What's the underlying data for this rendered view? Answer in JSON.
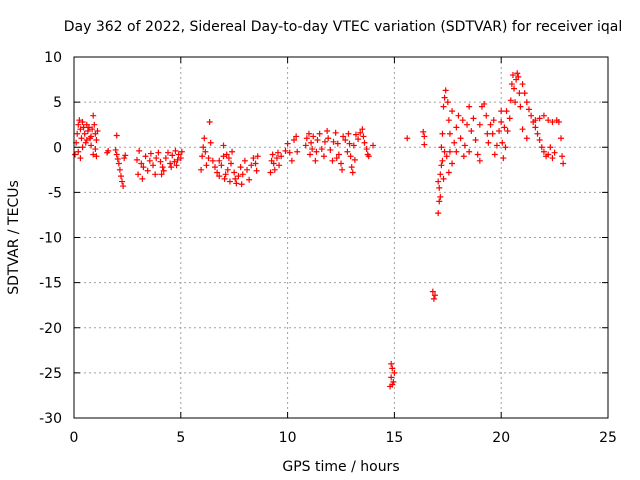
{
  "chart_data": {
    "type": "scatter",
    "title": "Day 362 of 2022, Sidereal Day-to-day VTEC variation (SDTVAR) for receiver iqal",
    "xlabel": "GPS time / hours",
    "ylabel": "SDTVAR / TECUs",
    "xlim": [
      0,
      25
    ],
    "ylim": [
      -30,
      10
    ],
    "xticks": [
      0,
      5,
      10,
      15,
      20,
      25
    ],
    "yticks": [
      -30,
      -25,
      -20,
      -15,
      -10,
      -5,
      0,
      5,
      10
    ],
    "grid": true,
    "marker": "+",
    "series": [
      {
        "name": "SDTVAR",
        "color": "#ff0000",
        "points": [
          [
            0.05,
            -0.8
          ],
          [
            0.1,
            0.5
          ],
          [
            0.15,
            1.5
          ],
          [
            0.2,
            2.5
          ],
          [
            0.25,
            3.0
          ],
          [
            0.3,
            2.0
          ],
          [
            0.35,
            1.0
          ],
          [
            0.4,
            2.8
          ],
          [
            0.45,
            2.2
          ],
          [
            0.5,
            1.5
          ],
          [
            0.55,
            0.5
          ],
          [
            0.6,
            2.5
          ],
          [
            0.65,
            1.8
          ],
          [
            0.7,
            2.2
          ],
          [
            0.75,
            1.0
          ],
          [
            0.8,
            0.2
          ],
          [
            0.85,
            2.0
          ],
          [
            0.9,
            3.5
          ],
          [
            0.95,
            2.5
          ],
          [
            1.0,
            1.5
          ],
          [
            1.05,
            0.8
          ],
          [
            1.1,
            1.8
          ],
          [
            0.2,
            -0.5
          ],
          [
            0.4,
            0.0
          ],
          [
            0.6,
            0.8
          ],
          [
            0.8,
            1.2
          ],
          [
            1.0,
            -0.2
          ],
          [
            0.9,
            -0.8
          ],
          [
            1.05,
            -1.0
          ],
          [
            0.3,
            -1.2
          ],
          [
            1.55,
            -0.6
          ],
          [
            1.6,
            -0.4
          ],
          [
            1.95,
            -0.3
          ],
          [
            2.0,
            -0.8
          ],
          [
            2.05,
            -1.3
          ],
          [
            2.1,
            -1.8
          ],
          [
            2.15,
            -2.5
          ],
          [
            2.2,
            -3.2
          ],
          [
            2.25,
            -3.8
          ],
          [
            2.3,
            -4.3
          ],
          [
            2.35,
            -1.2
          ],
          [
            2.4,
            -0.9
          ],
          [
            2.0,
            1.3
          ],
          [
            2.95,
            -1.4
          ],
          [
            3.05,
            -0.4
          ],
          [
            3.15,
            -1.8
          ],
          [
            3.2,
            -3.5
          ],
          [
            3.25,
            -2.2
          ],
          [
            3.35,
            -1.0
          ],
          [
            3.45,
            -2.6
          ],
          [
            3.55,
            -1.5
          ],
          [
            3.6,
            -0.7
          ],
          [
            3.7,
            -2.0
          ],
          [
            3.8,
            -3.0
          ],
          [
            3.85,
            -1.2
          ],
          [
            3.95,
            -0.6
          ],
          [
            4.05,
            -1.6
          ],
          [
            4.1,
            -3.0
          ],
          [
            4.2,
            -2.6
          ],
          [
            4.3,
            -1.2
          ],
          [
            4.4,
            -0.6
          ],
          [
            4.5,
            -1.8
          ],
          [
            4.6,
            -0.9
          ],
          [
            4.7,
            -1.6
          ],
          [
            4.75,
            -0.4
          ],
          [
            4.8,
            -2.0
          ],
          [
            4.85,
            -1.4
          ],
          [
            4.9,
            -0.8
          ],
          [
            5.0,
            -1.2
          ],
          [
            5.05,
            -0.5
          ],
          [
            4.15,
            -2.2
          ],
          [
            3.0,
            -3.0
          ],
          [
            4.55,
            -2.2
          ],
          [
            5.95,
            -2.5
          ],
          [
            6.0,
            -1.0
          ],
          [
            6.05,
            0.0
          ],
          [
            6.1,
            1.0
          ],
          [
            6.15,
            -0.5
          ],
          [
            6.2,
            -2.0
          ],
          [
            6.3,
            -1.2
          ],
          [
            6.35,
            2.8
          ],
          [
            6.4,
            0.5
          ],
          [
            6.5,
            -1.5
          ],
          [
            6.6,
            -2.2
          ],
          [
            6.7,
            -2.8
          ],
          [
            6.8,
            -3.2
          ],
          [
            6.9,
            -2.0
          ],
          [
            7.0,
            -1.0
          ],
          [
            7.05,
            -3.5
          ],
          [
            7.1,
            -3.0
          ],
          [
            7.15,
            -0.8
          ],
          [
            7.2,
            -2.5
          ],
          [
            7.3,
            -3.8
          ],
          [
            7.35,
            -1.8
          ],
          [
            7.4,
            -0.5
          ],
          [
            7.5,
            -2.8
          ],
          [
            7.55,
            -3.5
          ],
          [
            7.6,
            -4.0
          ],
          [
            7.7,
            -3.2
          ],
          [
            7.8,
            -2.2
          ],
          [
            7.85,
            -4.1
          ],
          [
            7.9,
            -3.0
          ],
          [
            8.0,
            -1.5
          ],
          [
            8.1,
            -2.5
          ],
          [
            8.2,
            -3.6
          ],
          [
            8.3,
            -2.0
          ],
          [
            8.4,
            -1.2
          ],
          [
            8.5,
            -1.8
          ],
          [
            8.55,
            -2.6
          ],
          [
            8.6,
            -1.0
          ],
          [
            7.0,
            0.2
          ],
          [
            6.8,
            -1.5
          ],
          [
            7.25,
            -1.2
          ],
          [
            9.2,
            -2.8
          ],
          [
            9.25,
            -1.5
          ],
          [
            9.3,
            -0.8
          ],
          [
            9.35,
            -1.8
          ],
          [
            9.4,
            -2.5
          ],
          [
            9.5,
            -1.2
          ],
          [
            9.55,
            -0.6
          ],
          [
            9.6,
            -2.0
          ],
          [
            9.7,
            -1.0
          ],
          [
            9.9,
            -0.4
          ],
          [
            10.0,
            0.4
          ],
          [
            10.1,
            -0.6
          ],
          [
            10.2,
            -1.5
          ],
          [
            10.3,
            0.8
          ],
          [
            10.4,
            1.2
          ],
          [
            10.45,
            -0.5
          ],
          [
            10.85,
            0.2
          ],
          [
            10.9,
            1.0
          ],
          [
            11.0,
            1.5
          ],
          [
            11.05,
            -0.8
          ],
          [
            11.1,
            0.5
          ],
          [
            11.2,
            1.2
          ],
          [
            11.3,
            -1.5
          ],
          [
            11.35,
            -0.5
          ],
          [
            11.4,
            0.8
          ],
          [
            11.5,
            1.5
          ],
          [
            11.6,
            -0.2
          ],
          [
            11.7,
            -1.0
          ],
          [
            11.75,
            0.6
          ],
          [
            11.85,
            1.8
          ],
          [
            11.9,
            1.0
          ],
          [
            12.0,
            -0.3
          ],
          [
            12.1,
            -1.5
          ],
          [
            12.15,
            0.6
          ],
          [
            12.25,
            1.6
          ],
          [
            12.35,
            0.4
          ],
          [
            12.4,
            -0.8
          ],
          [
            12.5,
            -1.8
          ],
          [
            12.55,
            -2.5
          ],
          [
            12.6,
            1.2
          ],
          [
            12.7,
            0.8
          ],
          [
            12.8,
            -0.5
          ],
          [
            12.85,
            1.5
          ],
          [
            12.95,
            -1.0
          ],
          [
            13.0,
            -2.2
          ],
          [
            13.05,
            -2.8
          ],
          [
            13.1,
            0.2
          ],
          [
            13.2,
            1.4
          ],
          [
            13.3,
            0.9
          ],
          [
            13.4,
            1.6
          ],
          [
            13.5,
            2.0
          ],
          [
            13.55,
            1.2
          ],
          [
            13.6,
            0.5
          ],
          [
            13.7,
            -0.2
          ],
          [
            13.75,
            -0.8
          ],
          [
            13.8,
            -1.0
          ],
          [
            14.0,
            0.2
          ],
          [
            12.3,
            -1.2
          ],
          [
            11.15,
            -0.2
          ],
          [
            12.9,
            0.4
          ],
          [
            13.15,
            -1.4
          ],
          [
            14.8,
            -26.5
          ],
          [
            14.85,
            -25.5
          ],
          [
            14.9,
            -24.5
          ],
          [
            14.95,
            -26.0
          ],
          [
            15.0,
            -25.0
          ],
          [
            14.85,
            -24.0
          ],
          [
            14.9,
            -26.3
          ],
          [
            15.6,
            1.0
          ],
          [
            16.35,
            1.7
          ],
          [
            16.4,
            1.2
          ],
          [
            16.4,
            0.3
          ],
          [
            16.8,
            -16.0
          ],
          [
            16.85,
            -16.8
          ],
          [
            16.9,
            -16.4
          ],
          [
            17.05,
            -3.8
          ],
          [
            17.05,
            -7.3
          ],
          [
            17.1,
            -6.0
          ],
          [
            17.1,
            -4.5
          ],
          [
            17.15,
            -5.5
          ],
          [
            17.15,
            -3.0
          ],
          [
            17.2,
            -2.0
          ],
          [
            17.2,
            0.0
          ],
          [
            17.25,
            -1.5
          ],
          [
            17.25,
            1.5
          ],
          [
            17.3,
            -3.5
          ],
          [
            17.3,
            4.5
          ],
          [
            17.35,
            -0.5
          ],
          [
            17.35,
            5.5
          ],
          [
            17.4,
            6.3
          ],
          [
            17.45,
            -1.0
          ],
          [
            17.5,
            5.0
          ],
          [
            17.55,
            3.0
          ],
          [
            17.6,
            1.5
          ],
          [
            17.7,
            4.0
          ],
          [
            17.8,
            0.5
          ],
          [
            17.9,
            2.2
          ],
          [
            18.0,
            3.5
          ],
          [
            18.1,
            1.0
          ],
          [
            18.2,
            3.0
          ],
          [
            18.25,
            -1.0
          ],
          [
            18.3,
            0.2
          ],
          [
            18.4,
            2.5
          ],
          [
            18.5,
            -0.5
          ],
          [
            18.6,
            1.8
          ],
          [
            18.7,
            3.2
          ],
          [
            18.8,
            0.8
          ],
          [
            18.9,
            -0.8
          ],
          [
            19.0,
            2.5
          ],
          [
            19.1,
            4.5
          ],
          [
            19.2,
            4.8
          ],
          [
            19.3,
            3.5
          ],
          [
            19.35,
            1.5
          ],
          [
            19.4,
            0.5
          ],
          [
            19.5,
            2.5
          ],
          [
            19.6,
            1.5
          ],
          [
            19.7,
            -0.8
          ],
          [
            19.8,
            0.2
          ],
          [
            19.9,
            1.8
          ],
          [
            20.0,
            2.8
          ],
          [
            20.05,
            0.5
          ],
          [
            20.1,
            -1.2
          ],
          [
            20.2,
            0.0
          ],
          [
            20.3,
            1.8
          ],
          [
            20.4,
            3.2
          ],
          [
            20.45,
            5.2
          ],
          [
            20.5,
            7.0
          ],
          [
            20.55,
            8.0
          ],
          [
            20.6,
            6.5
          ],
          [
            20.65,
            5.0
          ],
          [
            20.7,
            7.5
          ],
          [
            20.75,
            8.2
          ],
          [
            20.8,
            7.8
          ],
          [
            20.85,
            6.0
          ],
          [
            20.9,
            4.5
          ],
          [
            21.0,
            7.0
          ],
          [
            21.1,
            6.0
          ],
          [
            21.2,
            5.0
          ],
          [
            21.3,
            4.2
          ],
          [
            21.4,
            3.5
          ],
          [
            21.5,
            2.8
          ],
          [
            21.6,
            2.2
          ],
          [
            21.7,
            1.5
          ],
          [
            21.8,
            0.8
          ],
          [
            21.9,
            0.0
          ],
          [
            22.0,
            -0.5
          ],
          [
            22.1,
            -1.0
          ],
          [
            22.2,
            -0.8
          ],
          [
            22.3,
            0.0
          ],
          [
            22.4,
            -1.2
          ],
          [
            22.5,
            -0.6
          ],
          [
            21.6,
            3.0
          ],
          [
            21.8,
            3.2
          ],
          [
            22.0,
            3.5
          ],
          [
            22.2,
            3.0
          ],
          [
            22.4,
            2.8
          ],
          [
            22.6,
            3.0
          ],
          [
            22.7,
            2.8
          ],
          [
            22.8,
            1.0
          ],
          [
            22.85,
            -1.0
          ],
          [
            22.9,
            -1.8
          ],
          [
            19.0,
            -1.5
          ],
          [
            20.0,
            4.0
          ],
          [
            21.0,
            2.0
          ],
          [
            18.5,
            4.5
          ],
          [
            17.55,
            -2.8
          ],
          [
            17.6,
            -0.5
          ],
          [
            17.7,
            -1.8
          ],
          [
            17.9,
            -0.5
          ],
          [
            20.15,
            2.2
          ],
          [
            20.25,
            4.0
          ],
          [
            19.65,
            3.0
          ],
          [
            21.2,
            1.0
          ]
        ]
      }
    ]
  }
}
